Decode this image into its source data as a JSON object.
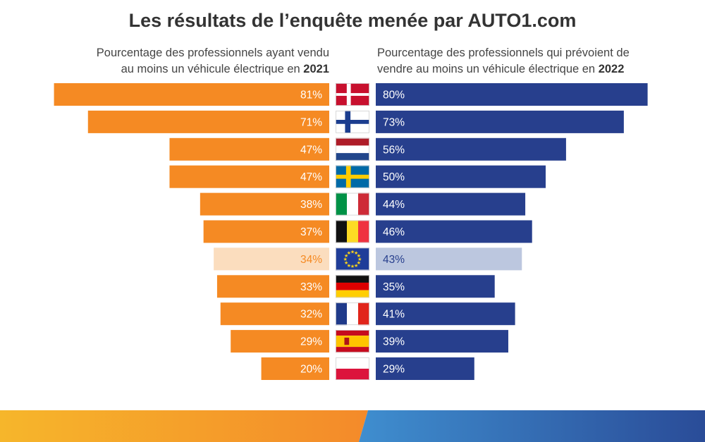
{
  "title": "Les résultats de l’enquête menée par AUTO1.com",
  "subtitle_left": {
    "line1": "Pourcentage des professionnels ayant vendu",
    "line2_prefix": "au moins un véhicule électrique en ",
    "year": "2021"
  },
  "subtitle_right": {
    "line1": "Pourcentage des professionnels qui prévoient de",
    "line2_prefix": "vendre au moins un véhicule électrique en ",
    "year": "2022"
  },
  "colors": {
    "orange": "#F58A23",
    "orange_light": "#FBDDBE",
    "blue": "#273F8D",
    "blue_light": "#BCC7DF",
    "text_light": "#FFFFFF",
    "text_highlight_left": "#F58A23",
    "text_highlight_right": "#273F8D"
  },
  "chart_data": {
    "type": "bar",
    "orientation": "horizontal-butterfly",
    "categories": [
      "Danemark",
      "Finlande",
      "Pays-Bas",
      "Suède",
      "Italie",
      "Belgique",
      "Union européenne",
      "Allemagne",
      "France",
      "Espagne",
      "Pologne"
    ],
    "flags": [
      "denmark",
      "finland",
      "netherlands",
      "sweden",
      "italy",
      "belgium",
      "eu",
      "germany",
      "france",
      "spain",
      "poland"
    ],
    "highlight_index": 6,
    "unit": "%",
    "series": [
      {
        "name": "2021",
        "side": "left",
        "values": [
          81,
          71,
          47,
          47,
          38,
          37,
          34,
          33,
          32,
          29,
          20
        ]
      },
      {
        "name": "2022",
        "side": "right",
        "values": [
          80,
          73,
          56,
          50,
          44,
          46,
          43,
          35,
          41,
          39,
          29
        ]
      }
    ]
  }
}
